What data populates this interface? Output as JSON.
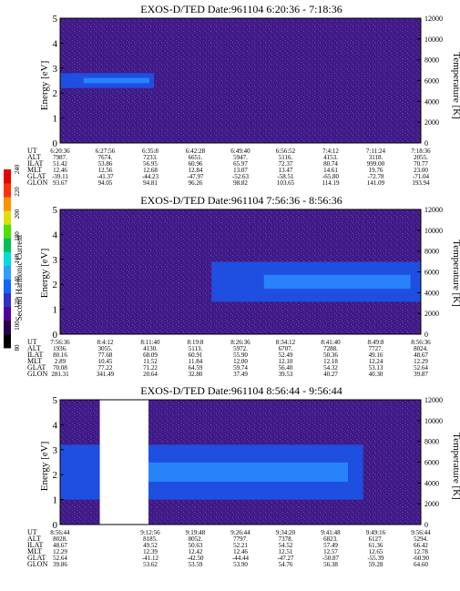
{
  "colorbar": {
    "label": "Second Harmonic Current",
    "ticks": [
      {
        "value": 80,
        "label": "80"
      },
      {
        "value": 100,
        "label": "100"
      },
      {
        "value": 120,
        "label": "120"
      },
      {
        "value": 140,
        "label": "140"
      },
      {
        "value": 160,
        "label": "160"
      },
      {
        "value": 180,
        "label": "180"
      },
      {
        "value": 200,
        "label": "200"
      },
      {
        "value": 220,
        "label": "220"
      },
      {
        "value": 240,
        "label": "240"
      }
    ],
    "range": [
      80,
      240
    ],
    "colors": [
      "#000000",
      "#2a0050",
      "#5000a0",
      "#3030c8",
      "#1464ff",
      "#2aa0ff",
      "#00dcdc",
      "#00c050",
      "#50e000",
      "#e0e000",
      "#ff9000",
      "#ff3000",
      "#e80000"
    ]
  },
  "chart_data": [
    {
      "type": "heatmap",
      "title": "EXOS-D/TED   Date:961104   6:20:36 - 7:18:36",
      "ylabel": "Energy [eV]",
      "y2label": "Temperature [K]",
      "ylim": [
        0,
        5
      ],
      "y2lim": [
        0,
        12000
      ],
      "yticks": [
        "0",
        "1",
        "2",
        "3",
        "4",
        "5"
      ],
      "y2ticks": [
        "0",
        "2000",
        "4000",
        "6000",
        "8000",
        "10000",
        "12000"
      ],
      "blue_band": {
        "start_frac": 0.0,
        "end_frac": 0.26,
        "energy_low": 2.2,
        "energy_high": 2.8
      },
      "orbit_table": {
        "rows": [
          {
            "name": "UT",
            "values": [
              "6:20:36",
              "6:27:56",
              "6:35:8",
              "6:42:28",
              "6:49:40",
              "6:56:52",
              "7:4:12",
              "7:11:24",
              "7:18:36"
            ]
          },
          {
            "name": "ALT",
            "values": [
              "7987.",
              "7674.",
              "7233.",
              "6651.",
              "5947.",
              "5116.",
              "4153.",
              "3118.",
              "2055."
            ]
          },
          {
            "name": "ILAT",
            "values": [
              "51.42",
              "53.86",
              "56.95",
              "60.96",
              "65.97",
              "72.37",
              "80.74",
              "999.00",
              "70.77"
            ]
          },
          {
            "name": "MLT",
            "values": [
              "12.46",
              "12.56",
              "12.68",
              "12.84",
              "13.07",
              "13.47",
              "14.61",
              "19.76",
              "23.00"
            ]
          },
          {
            "name": "GLAT",
            "values": [
              "-39.11",
              "-41.37",
              "-44.23",
              "-47.97",
              "-52.63",
              "-58.51",
              "-65.80",
              "-72.78",
              "-71.04"
            ]
          },
          {
            "name": "GLON",
            "values": [
              "93.67",
              "94.05",
              "94.81",
              "96.26",
              "98.82",
              "103.65",
              "114.19",
              "141.09",
              "193.94"
            ]
          }
        ]
      }
    },
    {
      "type": "heatmap",
      "title": "EXOS-D/TED   Date:961104   7:56:36 - 8:56:36",
      "ylabel": "Energy [eV]",
      "y2label": "Temperature [K]",
      "ylim": [
        0,
        5
      ],
      "y2lim": [
        0,
        12000
      ],
      "yticks": [
        "0",
        "1",
        "2",
        "3",
        "4",
        "5"
      ],
      "y2ticks": [
        "0",
        "2000",
        "4000",
        "6000",
        "8000",
        "10000",
        "12000"
      ],
      "blue_band": {
        "start_frac": 0.42,
        "end_frac": 1.0,
        "energy_low": 1.3,
        "energy_high": 2.9
      },
      "orbit_table": {
        "rows": [
          {
            "name": "UT",
            "values": [
              "7:56:36",
              "8:4:12",
              "8:11:40",
              "8:19:8",
              "8:26:36",
              "8:34:12",
              "8:41:40",
              "8:49:8",
              "8:56:36"
            ]
          },
          {
            "name": "ALT",
            "values": [
              "1936.",
              "3055.",
              "4130.",
              "5113.",
              "5972.",
              "6707.",
              "7288.",
              "7727.",
              "8024."
            ]
          },
          {
            "name": "ILAT",
            "values": [
              "80.16",
              "77.68",
              "68.09",
              "60.91",
              "55.90",
              "52.49",
              "50.36",
              "49.16",
              "48.67"
            ]
          },
          {
            "name": "MLT",
            "values": [
              "2.89",
              "10.45",
              "11.52",
              "11.84",
              "12.00",
              "12.10",
              "12.18",
              "12.24",
              "12.29"
            ]
          },
          {
            "name": "GLAT",
            "values": [
              "70.08",
              "77.22",
              "71.22",
              "64.59",
              "59.74",
              "56.40",
              "54.32",
              "53.13",
              "52.64"
            ]
          },
          {
            "name": "GLON",
            "values": [
              "281.31",
              "341.49",
              "20.64",
              "32.80",
              "37.49",
              "39.53",
              "40.27",
              "40.30",
              "39.87"
            ]
          }
        ]
      }
    },
    {
      "type": "heatmap",
      "title": "EXOS-D/TED   Date:961104   8:56:44 - 9:56:44",
      "ylabel": "Energy [eV]",
      "y2label": "Temperature [K]",
      "ylim": [
        0,
        5
      ],
      "y2lim": [
        0,
        12000
      ],
      "yticks": [
        "0",
        "1",
        "2",
        "3",
        "4",
        "5"
      ],
      "y2ticks": [
        "0",
        "2000",
        "4000",
        "6000",
        "8000",
        "10000",
        "12000"
      ],
      "data_gap": {
        "start_frac": 0.11,
        "end_frac": 0.245
      },
      "blue_band": {
        "start_frac": 0.0,
        "end_frac": 0.84,
        "energy_low": 1.0,
        "energy_high": 3.2
      },
      "orbit_table": {
        "rows": [
          {
            "name": "UT",
            "values": [
              "8:56:44",
              "",
              "9:12:56",
              "9:19:48",
              "9:26:44",
              "9:34:20",
              "9:41:48",
              "9:49:16",
              "9:56:44"
            ]
          },
          {
            "name": "ALT",
            "values": [
              "8028.",
              "",
              "8185.",
              "8052.",
              "7797.",
              "7378.",
              "6823.",
              "6127.",
              "5294."
            ]
          },
          {
            "name": "ILAT",
            "values": [
              "48.67",
              "",
              "49.52",
              "50.63",
              "52.21",
              "54.52",
              "57.49",
              "61.36",
              "66.42"
            ]
          },
          {
            "name": "MLT",
            "values": [
              "12.29",
              "",
              "12.39",
              "12.42",
              "12.46",
              "12.51",
              "12.57",
              "12.65",
              "12.78"
            ]
          },
          {
            "name": "GLAT",
            "values": [
              "52.64",
              "",
              "-41.12",
              "-42.50",
              "-44.44",
              "-47.27",
              "-50.87",
              "-55.39",
              "-60.90"
            ]
          },
          {
            "name": "GLON",
            "values": [
              "39.86",
              "",
              "53.62",
              "53.59",
              "53.90",
              "54.76",
              "56.38",
              "59.28",
              "64.60"
            ]
          }
        ]
      }
    }
  ]
}
